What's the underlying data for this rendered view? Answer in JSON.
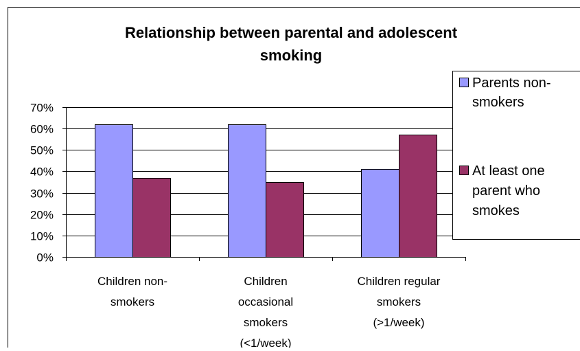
{
  "chart_data": {
    "type": "bar",
    "title_lines": [
      "Relationship between parental and adolescent",
      "smoking"
    ],
    "xlabel": "",
    "ylabel": "",
    "ylim": [
      0,
      70
    ],
    "ytick_labels": [
      "0%",
      "10%",
      "20%",
      "30%",
      "40%",
      "50%",
      "60%",
      "70%"
    ],
    "ytick_values": [
      0,
      10,
      20,
      30,
      40,
      50,
      60,
      70
    ],
    "grid": true,
    "legend_position": "right",
    "categories": [
      [
        "Children non-",
        "smokers"
      ],
      [
        "Children",
        "occasional",
        "smokers",
        "(<1/week)"
      ],
      [
        "Children regular",
        "smokers",
        "(>1/week)"
      ]
    ],
    "series": [
      {
        "name_lines": [
          "Parents non-",
          "smokers"
        ],
        "color": "#9999FF",
        "values": [
          62,
          62,
          41
        ]
      },
      {
        "name_lines": [
          "At least one",
          "parent who",
          "smokes"
        ],
        "color": "#993366",
        "values": [
          37,
          35,
          57
        ]
      }
    ]
  }
}
